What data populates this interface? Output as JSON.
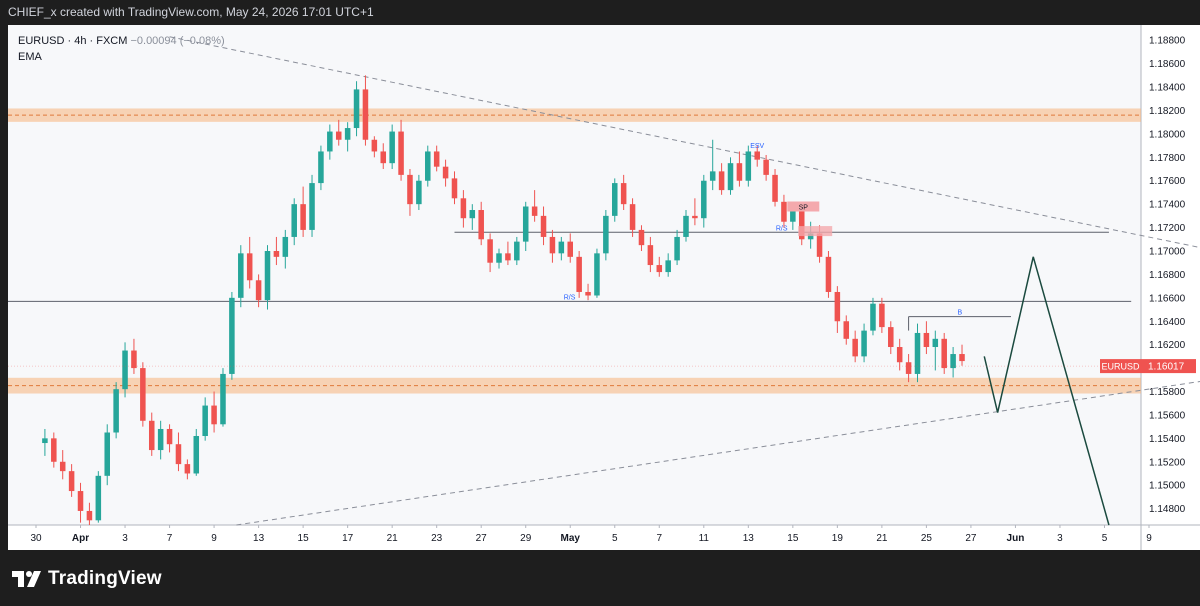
{
  "header": {
    "text": "CHIEF_x created with TradingView.com, May 24, 2026 17:01 UTC+1"
  },
  "legend": {
    "symbol": "EURUSD · 4h · FXCM",
    "change": "−0.00094 (−0.08%)",
    "indicator": "EMA"
  },
  "footer": {
    "brand": "TradingView"
  },
  "colors": {
    "up": "#26a69a",
    "down": "#ef5350",
    "zone": "#f7b27a",
    "label": "#2962ff",
    "price_tag": "#ef5350",
    "projection": "#1b4a3f"
  },
  "chart_data": {
    "type": "candlestick",
    "symbol": "EURUSD",
    "timeframe": "4h",
    "ylim": [
      1.1466,
      1.1893
    ],
    "y_ticks": [
      1.188,
      1.186,
      1.184,
      1.182,
      1.18,
      1.178,
      1.176,
      1.174,
      1.172,
      1.17,
      1.168,
      1.166,
      1.164,
      1.162,
      1.16,
      1.158,
      1.156,
      1.154,
      1.152,
      1.15,
      1.148
    ],
    "x_ticks": [
      "30",
      "Apr",
      "3",
      "7",
      "9",
      "13",
      "15",
      "17",
      "21",
      "23",
      "27",
      "29",
      "May",
      "5",
      "7",
      "11",
      "13",
      "15",
      "19",
      "21",
      "25",
      "27",
      "Jun",
      "3",
      "5",
      "9"
    ],
    "last_price": {
      "symbol": "EURUSD",
      "value": "1.16017"
    },
    "zones": [
      {
        "low": 1.1812,
        "high": 1.182
      },
      {
        "low": 1.158,
        "high": 1.159
      }
    ],
    "levels": [
      {
        "price": 1.1716,
        "label": "R/S",
        "from": 9.4,
        "to": 24.1
      },
      {
        "price": 1.1657,
        "label": "R/S",
        "from": 0,
        "to": 24.6
      },
      {
        "price": 1.1644,
        "label": "B",
        "from": 19.6,
        "to": 21.9
      }
    ],
    "markers": [
      {
        "label": "ESV",
        "x": 16.2,
        "price": 1.1788
      },
      {
        "label": "SP",
        "x": 17.1,
        "price": 1.1738
      }
    ],
    "trendlines": [
      {
        "points": [
          [
            3.0,
            1.1883
          ],
          [
            26.4,
            1.1701
          ]
        ],
        "style": "dashed"
      },
      {
        "points": [
          [
            4.5,
            1.1466
          ],
          [
            26.4,
            1.159
          ]
        ],
        "style": "dashed"
      }
    ],
    "projection": [
      [
        21.3,
        1.161
      ],
      [
        21.6,
        1.1562
      ],
      [
        22.4,
        1.1695
      ],
      [
        24.1,
        1.1466
      ]
    ],
    "candles": [
      [
        0.2,
        1.1536,
        1.1548,
        1.1525,
        1.154
      ],
      [
        0.4,
        1.154,
        1.1545,
        1.1515,
        1.152
      ],
      [
        0.6,
        1.152,
        1.153,
        1.1505,
        1.1512
      ],
      [
        0.8,
        1.1512,
        1.1518,
        1.149,
        1.1495
      ],
      [
        1.0,
        1.1495,
        1.1502,
        1.1468,
        1.1478
      ],
      [
        1.2,
        1.1478,
        1.1485,
        1.1466,
        1.147
      ],
      [
        1.4,
        1.147,
        1.1512,
        1.1468,
        1.1508
      ],
      [
        1.6,
        1.1508,
        1.1552,
        1.15,
        1.1545
      ],
      [
        1.8,
        1.1545,
        1.1588,
        1.154,
        1.1582
      ],
      [
        2.0,
        1.1582,
        1.1622,
        1.1575,
        1.1615
      ],
      [
        2.2,
        1.1615,
        1.1625,
        1.1595,
        1.16
      ],
      [
        2.4,
        1.16,
        1.1605,
        1.155,
        1.1555
      ],
      [
        2.6,
        1.1555,
        1.1562,
        1.1525,
        1.153
      ],
      [
        2.8,
        1.153,
        1.1555,
        1.1522,
        1.1548
      ],
      [
        3.0,
        1.1548,
        1.1552,
        1.1528,
        1.1535
      ],
      [
        3.2,
        1.1535,
        1.1545,
        1.1512,
        1.1518
      ],
      [
        3.4,
        1.1518,
        1.1522,
        1.1505,
        1.151
      ],
      [
        3.6,
        1.151,
        1.1548,
        1.1508,
        1.1542
      ],
      [
        3.8,
        1.1542,
        1.1575,
        1.1538,
        1.1568
      ],
      [
        4.0,
        1.1568,
        1.158,
        1.1545,
        1.1552
      ],
      [
        4.2,
        1.1552,
        1.16,
        1.155,
        1.1595
      ],
      [
        4.4,
        1.1595,
        1.1665,
        1.159,
        1.166
      ],
      [
        4.6,
        1.166,
        1.1705,
        1.1652,
        1.1698
      ],
      [
        4.8,
        1.1698,
        1.1712,
        1.1668,
        1.1675
      ],
      [
        5.0,
        1.1675,
        1.168,
        1.1652,
        1.1658
      ],
      [
        5.2,
        1.1658,
        1.1705,
        1.165,
        1.17
      ],
      [
        5.4,
        1.17,
        1.1712,
        1.1688,
        1.1695
      ],
      [
        5.6,
        1.1695,
        1.1718,
        1.1685,
        1.1712
      ],
      [
        5.8,
        1.1712,
        1.1745,
        1.1705,
        1.174
      ],
      [
        6.0,
        1.174,
        1.1755,
        1.1712,
        1.1718
      ],
      [
        6.2,
        1.1718,
        1.1765,
        1.1712,
        1.1758
      ],
      [
        6.4,
        1.1758,
        1.179,
        1.1752,
        1.1785
      ],
      [
        6.6,
        1.1785,
        1.1808,
        1.1778,
        1.1802
      ],
      [
        6.8,
        1.1802,
        1.1812,
        1.179,
        1.1795
      ],
      [
        7.0,
        1.1795,
        1.181,
        1.1785,
        1.1805
      ],
      [
        7.2,
        1.1805,
        1.1845,
        1.1798,
        1.1838
      ],
      [
        7.4,
        1.1838,
        1.185,
        1.179,
        1.1795
      ],
      [
        7.6,
        1.1795,
        1.1798,
        1.178,
        1.1785
      ],
      [
        7.8,
        1.1785,
        1.1792,
        1.177,
        1.1775
      ],
      [
        8.0,
        1.1775,
        1.1808,
        1.177,
        1.1802
      ],
      [
        8.2,
        1.1802,
        1.1812,
        1.176,
        1.1765
      ],
      [
        8.4,
        1.1765,
        1.177,
        1.173,
        1.174
      ],
      [
        8.6,
        1.174,
        1.1765,
        1.1735,
        1.176
      ],
      [
        8.8,
        1.176,
        1.179,
        1.1755,
        1.1785
      ],
      [
        9.0,
        1.1785,
        1.179,
        1.1768,
        1.1772
      ],
      [
        9.2,
        1.1772,
        1.1778,
        1.1755,
        1.1762
      ],
      [
        9.4,
        1.1762,
        1.1768,
        1.174,
        1.1745
      ],
      [
        9.6,
        1.1745,
        1.1752,
        1.172,
        1.1728
      ],
      [
        9.8,
        1.1728,
        1.174,
        1.1718,
        1.1735
      ],
      [
        10.0,
        1.1735,
        1.1742,
        1.1705,
        1.171
      ],
      [
        10.2,
        1.171,
        1.1715,
        1.1682,
        1.169
      ],
      [
        10.4,
        1.169,
        1.1702,
        1.1685,
        1.1698
      ],
      [
        10.6,
        1.1698,
        1.1708,
        1.1688,
        1.1692
      ],
      [
        10.8,
        1.1692,
        1.1712,
        1.1688,
        1.1708
      ],
      [
        11.0,
        1.1708,
        1.1742,
        1.17,
        1.1738
      ],
      [
        11.2,
        1.1738,
        1.1752,
        1.1725,
        1.173
      ],
      [
        11.4,
        1.173,
        1.1738,
        1.1705,
        1.1712
      ],
      [
        11.6,
        1.1712,
        1.1718,
        1.169,
        1.1698
      ],
      [
        11.8,
        1.1698,
        1.1712,
        1.1692,
        1.1708
      ],
      [
        12.0,
        1.1708,
        1.1715,
        1.169,
        1.1695
      ],
      [
        12.2,
        1.1695,
        1.17,
        1.166,
        1.1665
      ],
      [
        12.4,
        1.1665,
        1.1672,
        1.1658,
        1.1662
      ],
      [
        12.6,
        1.1662,
        1.1702,
        1.166,
        1.1698
      ],
      [
        12.8,
        1.1698,
        1.1735,
        1.1692,
        1.173
      ],
      [
        13.0,
        1.173,
        1.1762,
        1.1725,
        1.1758
      ],
      [
        13.2,
        1.1758,
        1.1765,
        1.1735,
        1.174
      ],
      [
        13.4,
        1.174,
        1.1745,
        1.1712,
        1.1718
      ],
      [
        13.6,
        1.1718,
        1.1722,
        1.17,
        1.1705
      ],
      [
        13.8,
        1.1705,
        1.1712,
        1.1682,
        1.1688
      ],
      [
        14.0,
        1.1688,
        1.1695,
        1.1678,
        1.1682
      ],
      [
        14.2,
        1.1682,
        1.1698,
        1.1678,
        1.1692
      ],
      [
        14.4,
        1.1692,
        1.1718,
        1.1688,
        1.1712
      ],
      [
        14.6,
        1.1712,
        1.1735,
        1.1708,
        1.173
      ],
      [
        14.8,
        1.173,
        1.1745,
        1.1722,
        1.1728
      ],
      [
        15.0,
        1.1728,
        1.1765,
        1.172,
        1.176
      ],
      [
        15.2,
        1.176,
        1.1795,
        1.1752,
        1.1768
      ],
      [
        15.4,
        1.1768,
        1.1775,
        1.1748,
        1.1752
      ],
      [
        15.6,
        1.1752,
        1.178,
        1.1748,
        1.1775
      ],
      [
        15.8,
        1.1775,
        1.1785,
        1.1755,
        1.176
      ],
      [
        16.0,
        1.176,
        1.179,
        1.1755,
        1.1785
      ],
      [
        16.2,
        1.1785,
        1.179,
        1.1772,
        1.1778
      ],
      [
        16.4,
        1.1778,
        1.1782,
        1.176,
        1.1765
      ],
      [
        16.6,
        1.1765,
        1.177,
        1.1738,
        1.1742
      ],
      [
        16.8,
        1.1742,
        1.1748,
        1.172,
        1.1725
      ],
      [
        17.0,
        1.1725,
        1.1742,
        1.1718,
        1.1735
      ],
      [
        17.2,
        1.1735,
        1.174,
        1.1705,
        1.171
      ],
      [
        17.4,
        1.171,
        1.1725,
        1.1702,
        1.1715
      ],
      [
        17.6,
        1.1715,
        1.1722,
        1.169,
        1.1695
      ],
      [
        17.8,
        1.1695,
        1.17,
        1.166,
        1.1665
      ],
      [
        18.0,
        1.1665,
        1.167,
        1.163,
        1.164
      ],
      [
        18.2,
        1.164,
        1.1645,
        1.162,
        1.1625
      ],
      [
        18.4,
        1.1625,
        1.1632,
        1.1605,
        1.161
      ],
      [
        18.6,
        1.161,
        1.1638,
        1.1605,
        1.1632
      ],
      [
        18.8,
        1.1632,
        1.166,
        1.1628,
        1.1655
      ],
      [
        19.0,
        1.1655,
        1.166,
        1.163,
        1.1635
      ],
      [
        19.2,
        1.1635,
        1.164,
        1.1612,
        1.1618
      ],
      [
        19.4,
        1.1618,
        1.1625,
        1.1598,
        1.1605
      ],
      [
        19.6,
        1.1605,
        1.1612,
        1.1588,
        1.1595
      ],
      [
        19.8,
        1.1595,
        1.1638,
        1.1588,
        1.163
      ],
      [
        20.0,
        1.163,
        1.164,
        1.1612,
        1.1618
      ],
      [
        20.2,
        1.1618,
        1.1632,
        1.1598,
        1.1625
      ],
      [
        20.4,
        1.1625,
        1.163,
        1.1595,
        1.16
      ],
      [
        20.6,
        1.16,
        1.1618,
        1.1592,
        1.1612
      ],
      [
        20.8,
        1.1612,
        1.162,
        1.1602,
        1.1606
      ]
    ]
  }
}
